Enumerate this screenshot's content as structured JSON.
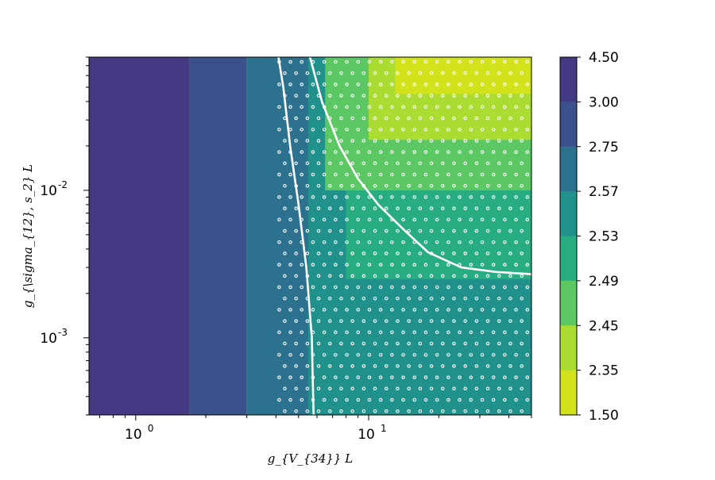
{
  "chart_data": {
    "type": "heatmap",
    "subtype": "filled-contour",
    "title": "",
    "xlabel": "g_{V_{34}} L",
    "ylabel": "g_{\\sigma_{12}, s_2} L",
    "x_scale": "log",
    "y_scale": "log",
    "xlim": [
      0.63,
      50
    ],
    "ylim": [
      0.0003,
      0.08
    ],
    "x_ticks": [
      {
        "value": 1,
        "label": "10",
        "exp": "0"
      },
      {
        "value": 10,
        "label": "10",
        "exp": "1"
      }
    ],
    "y_ticks": [
      {
        "value": 0.001,
        "label": "10",
        "exp": "-3"
      },
      {
        "value": 0.01,
        "label": "10",
        "exp": "-2"
      }
    ],
    "colorbar": {
      "levels": [
        "4.50",
        "3.00",
        "2.75",
        "2.57",
        "2.53",
        "2.49",
        "2.45",
        "2.35",
        "1.50"
      ],
      "band_colors": [
        "#443a83",
        "#3b518b",
        "#2c718e",
        "#21918c",
        "#27ad81",
        "#5cc863",
        "#aadc32",
        "#d2e21b"
      ]
    },
    "regions": [
      {
        "level_range": [
          "4.50",
          "3.00"
        ],
        "color": "#443a83",
        "x_range": [
          0.63,
          1.7
        ],
        "y_range": [
          0.0003,
          0.08
        ]
      },
      {
        "level_range": [
          "3.00",
          "2.75"
        ],
        "color": "#3b518b",
        "x_range": [
          1.7,
          3.0
        ],
        "y_range": [
          0.0003,
          0.08
        ]
      },
      {
        "level_range": [
          "2.75",
          "2.57"
        ],
        "color": "#2c718e",
        "x_range": [
          3.0,
          7.5
        ],
        "y_range": [
          0.0003,
          0.08
        ]
      },
      {
        "level_range": [
          "2.57",
          "2.53"
        ],
        "color": "#21918c",
        "x_range": [
          5.5,
          50
        ],
        "y_range": [
          0.0003,
          0.08
        ]
      },
      {
        "level_range": [
          "2.53",
          "2.49"
        ],
        "color": "#27ad81",
        "x_range": [
          8,
          50
        ],
        "y_range": [
          0.0025,
          0.08
        ]
      },
      {
        "level_range": [
          "2.49",
          "2.45"
        ],
        "color": "#5cc863",
        "x_range": [
          6.5,
          50
        ],
        "y_range": [
          0.01,
          0.08
        ]
      },
      {
        "level_range": [
          "2.45",
          "2.35"
        ],
        "color": "#aadc32",
        "x_range": [
          10,
          50
        ],
        "y_range": [
          0.022,
          0.08
        ]
      },
      {
        "level_range": [
          "2.35",
          "1.50"
        ],
        "color": "#d2e21b",
        "x_range": [
          13,
          50
        ],
        "y_range": [
          0.045,
          0.08
        ]
      }
    ],
    "hatched_region": {
      "pattern": "white open circles",
      "x_range": [
        4.0,
        50
      ],
      "y_range": [
        0.0003,
        0.08
      ]
    },
    "contour_lines": [
      {
        "color": "#ffffff",
        "points": [
          [
            4.1,
            0.08
          ],
          [
            4.3,
            0.05
          ],
          [
            4.6,
            0.02
          ],
          [
            5.0,
            0.008
          ],
          [
            5.4,
            0.003
          ],
          [
            5.7,
            0.001
          ],
          [
            5.8,
            0.0003
          ]
        ]
      },
      {
        "color": "#ffffff",
        "points": [
          [
            5.6,
            0.08
          ],
          [
            6.3,
            0.04
          ],
          [
            7.5,
            0.02
          ],
          [
            9,
            0.012
          ],
          [
            11,
            0.008
          ],
          [
            14,
            0.0055
          ],
          [
            18,
            0.0038
          ],
          [
            25,
            0.003
          ],
          [
            35,
            0.0028
          ],
          [
            50,
            0.0027
          ]
        ]
      }
    ]
  }
}
